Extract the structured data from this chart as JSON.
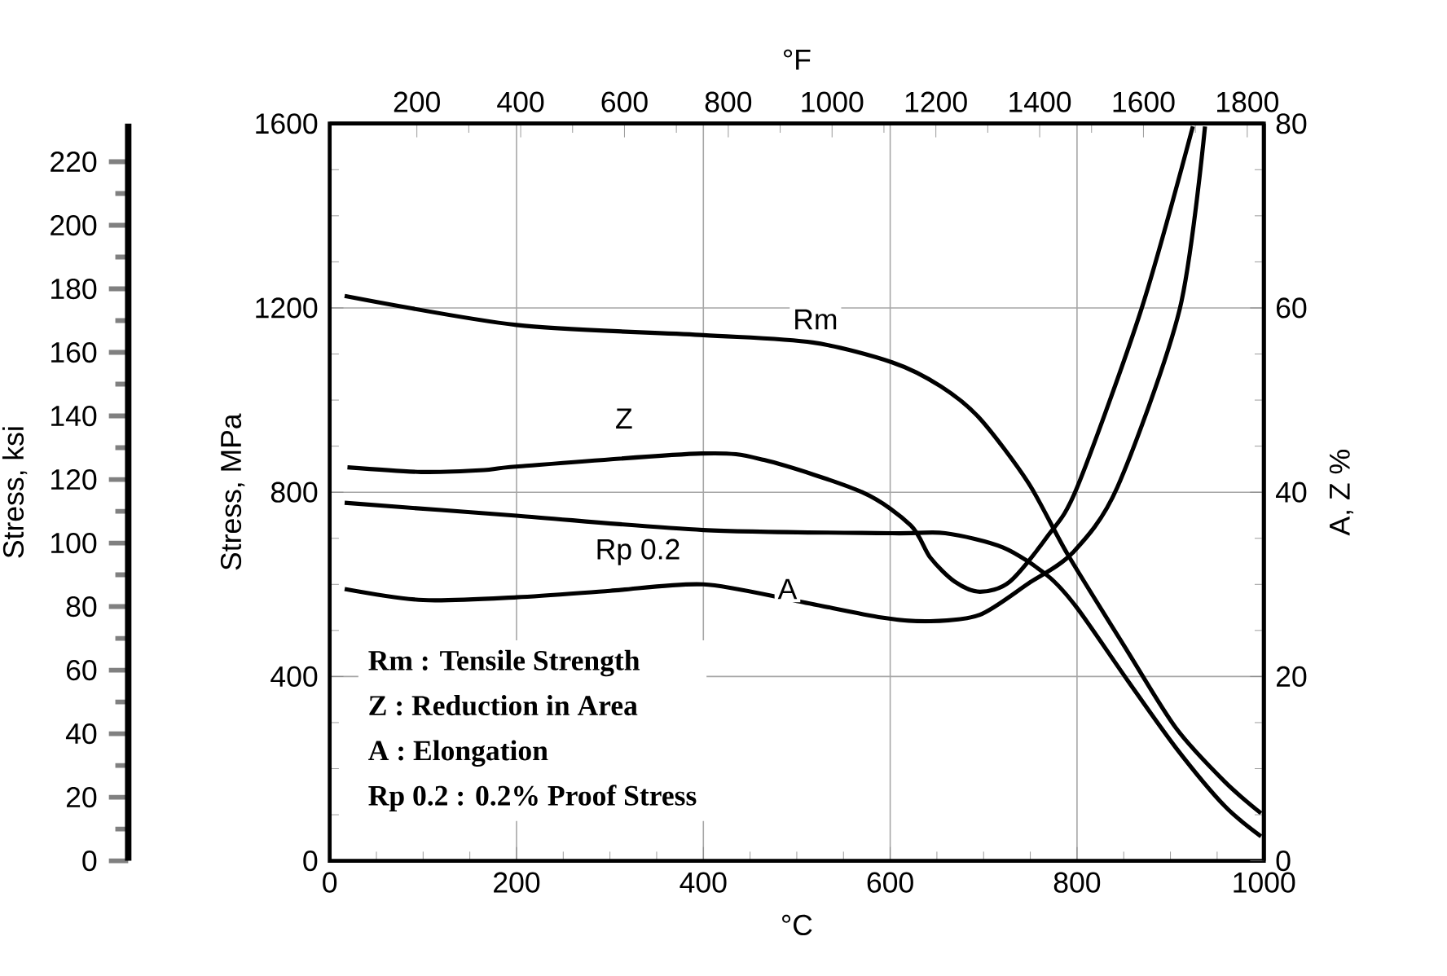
{
  "chart_data": {
    "type": "line",
    "xlabel": "°C",
    "ylabel": "Stress, MPa",
    "y2label": "A, Z %",
    "y3label": "Stress, ksi",
    "x2label": "°F",
    "xlim": [
      0,
      1000
    ],
    "xticks": [
      0,
      200,
      400,
      600,
      800,
      1000
    ],
    "x2lim": [
      32,
      1832
    ],
    "x2ticks": [
      200,
      400,
      600,
      800,
      1000,
      1200,
      1400,
      1600,
      1800
    ],
    "ylim": [
      0,
      1600
    ],
    "yticks": [
      0,
      400,
      800,
      1200,
      1600
    ],
    "y2lim": [
      0,
      80
    ],
    "y2ticks": [
      0,
      20,
      40,
      60,
      80
    ],
    "y3lim": [
      0,
      232
    ],
    "y3ticks": [
      0,
      20,
      40,
      60,
      80,
      100,
      120,
      140,
      160,
      180,
      200,
      220
    ],
    "grid": true,
    "marker": "none",
    "line_style": "solid",
    "series": [
      {
        "name": "Rm",
        "color": "#000000",
        "x": [
          16,
          200,
          400,
          517,
          602,
          654,
          696,
          748,
          790,
          854,
          906,
          958,
          997
        ],
        "values": [
          1226,
          1163,
          1141,
          1125,
          1082,
          1030,
          960,
          820,
          665,
          455,
          288,
          172,
          103
        ]
      },
      {
        "name": "Rp 0.2",
        "color": "#000000",
        "x": [
          16,
          200,
          400,
          602,
          659,
          721,
          769,
          800,
          854,
          906,
          958,
          997
        ],
        "values": [
          777,
          749,
          718,
          711,
          711,
          680,
          618,
          549,
          392,
          245,
          119,
          53
        ]
      },
      {
        "name": "Z",
        "color": "#000000",
        "axis": "y2",
        "x": [
          19,
          98,
          165,
          202,
          398,
          465,
          570,
          622,
          643,
          669,
          696,
          728,
          769,
          800,
          869,
          924
        ],
        "values": [
          42.7,
          42.2,
          42.4,
          42.8,
          44.2,
          43.5,
          40,
          36.4,
          32.9,
          30.3,
          29.2,
          30.3,
          35.3,
          40.5,
          59.9,
          79.7
        ]
      },
      {
        "name": "A",
        "color": "#000000",
        "axis": "y2",
        "x": [
          16,
          100,
          200,
          300,
          400,
          500,
          591,
          643,
          696,
          748,
          795,
          843,
          910,
          937
        ],
        "values": [
          29.5,
          28.3,
          28.6,
          29.3,
          30,
          28.2,
          26.4,
          26,
          26.7,
          30.1,
          33.4,
          40.5,
          59.9,
          79.7
        ]
      }
    ],
    "annotations": [
      "Rm : Tensile Strength",
      "Z : Reduction in Area",
      "A : Elongation",
      "Rp 0.2 : 0.2% Proof Stress"
    ]
  }
}
